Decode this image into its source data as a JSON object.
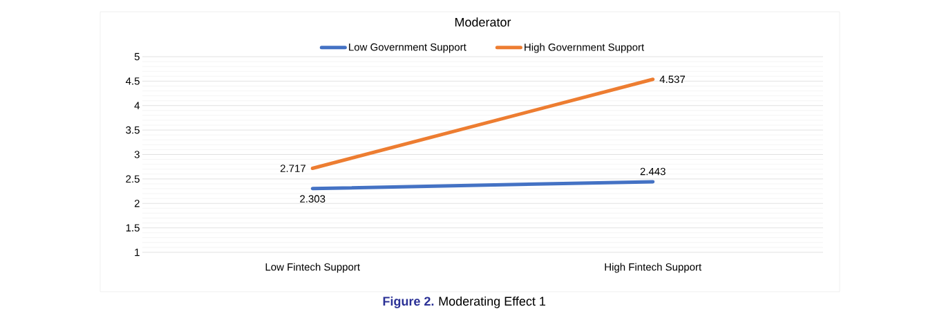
{
  "chart_data": {
    "type": "line",
    "title": "Moderator",
    "categories": [
      "Low Fintech Support",
      "High Fintech Support"
    ],
    "series": [
      {
        "name": "Low Government Support",
        "color": "#4472c4",
        "values": [
          2.303,
          2.443
        ]
      },
      {
        "name": "High Government Support",
        "color": "#ed7d31",
        "values": [
          2.717,
          4.537
        ]
      }
    ],
    "ylim": [
      1,
      5
    ],
    "yticks": [
      1,
      1.5,
      2,
      2.5,
      3,
      3.5,
      4,
      4.5,
      5
    ],
    "grid": "y",
    "legend": "top",
    "marker": "none",
    "line_style": "solid",
    "data_labels": true,
    "annotations": [
      "**Figure 2.**",
      "Moderating Effect 1"
    ]
  }
}
